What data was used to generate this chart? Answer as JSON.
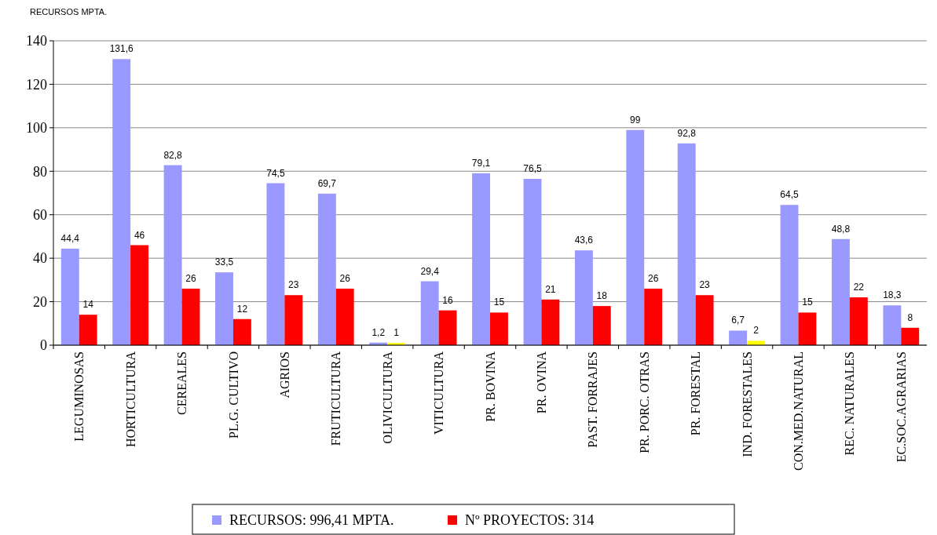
{
  "chart_data": {
    "type": "bar",
    "title": "RECURSOS MPTA.",
    "categories": [
      "LEGUMINOSAS",
      "HORTICULTURA",
      "CEREALES",
      "PL.G. CULTIVO",
      "AGRIOS",
      "FRUTICULTURA",
      "OLIVICULTURA",
      "VITICULTURA",
      "PR. BOVINA",
      "PR. OVINA",
      "PAST. FORRAJES",
      "PR. PORC. OTRAS",
      "PR. FORESTAL",
      "IND. FORESTALES",
      "CON.MED.NATURAL",
      "REC. NATURALES",
      "EC.SOC.AGRARIAS"
    ],
    "series": [
      {
        "name": "RECURSOS: 996,41 MPTA.",
        "color": "#9999ff",
        "value_labels": [
          "44,4",
          "131,6",
          "82,8",
          "33,5",
          "74,5",
          "69,7",
          "1,2",
          "29,4",
          "79,1",
          "76,5",
          "43,6",
          "99",
          "92,8",
          "6,7",
          "64,5",
          "48,8",
          "18,3"
        ],
        "values": [
          44.4,
          131.6,
          82.8,
          33.5,
          74.5,
          69.7,
          1.2,
          29.4,
          79.1,
          76.5,
          43.6,
          99,
          92.8,
          6.7,
          64.5,
          48.8,
          18.3
        ]
      },
      {
        "name": "Nº PROYECTOS: 314",
        "color": "#ff0000",
        "colors": [
          "#ff0000",
          "#ff0000",
          "#ff0000",
          "#ff0000",
          "#ff0000",
          "#ff0000",
          "#ffff00",
          "#ff0000",
          "#ff0000",
          "#ff0000",
          "#ff0000",
          "#ff0000",
          "#ff0000",
          "#ffff00",
          "#ff0000",
          "#ff0000",
          "#ff0000"
        ],
        "value_labels": [
          "14",
          "46",
          "26",
          "12",
          "23",
          "26",
          "1",
          "16",
          "15",
          "21",
          "18",
          "26",
          "23",
          "2",
          "15",
          "22",
          "8"
        ],
        "values": [
          14,
          46,
          26,
          12,
          23,
          26,
          1,
          16,
          15,
          21,
          18,
          26,
          23,
          2,
          15,
          22,
          8
        ]
      }
    ],
    "ylim": [
      0,
      140
    ],
    "yticks": [
      0,
      20,
      40,
      60,
      80,
      100,
      120,
      140
    ],
    "grid": "y",
    "legend": "bottom"
  }
}
